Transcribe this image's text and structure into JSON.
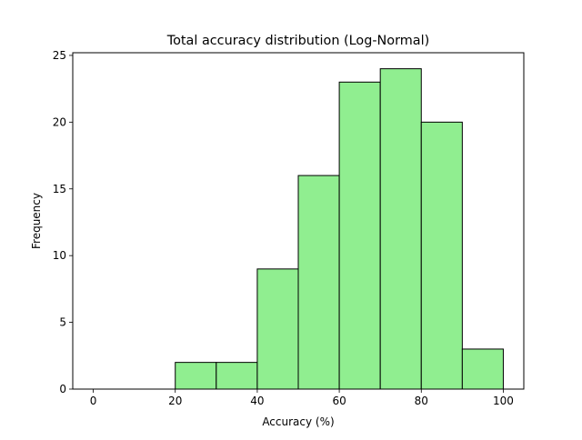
{
  "chart_data": {
    "type": "bar",
    "title": "Total accuracy distribution (Log-Normal)",
    "xlabel": "Accuracy (%)",
    "ylabel": "Frequency",
    "bins": [
      {
        "x0": 0,
        "x1": 10,
        "count": 0
      },
      {
        "x0": 10,
        "x1": 20,
        "count": 0
      },
      {
        "x0": 20,
        "x1": 30,
        "count": 2
      },
      {
        "x0": 30,
        "x1": 40,
        "count": 2
      },
      {
        "x0": 40,
        "x1": 50,
        "count": 9
      },
      {
        "x0": 50,
        "x1": 60,
        "count": 16
      },
      {
        "x0": 60,
        "x1": 70,
        "count": 23
      },
      {
        "x0": 70,
        "x1": 80,
        "count": 24
      },
      {
        "x0": 80,
        "x1": 90,
        "count": 20
      },
      {
        "x0": 90,
        "x1": 100,
        "count": 3
      }
    ],
    "xlim": [
      -5,
      105
    ],
    "ylim": [
      0,
      25.2
    ],
    "xticks": [
      0,
      20,
      40,
      60,
      80,
      100
    ],
    "yticks": [
      0,
      5,
      10,
      15,
      20,
      25
    ],
    "bar_color": "#90ee90",
    "edge_color": "#000000",
    "grid": false,
    "legend": "none"
  }
}
